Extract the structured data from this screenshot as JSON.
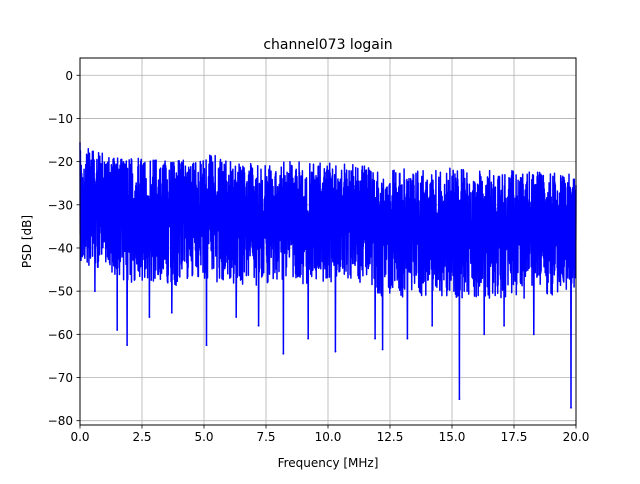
{
  "chart_data": {
    "type": "line",
    "title": "channel073 logain",
    "xlabel": "Frequency [MHz]",
    "ylabel": "PSD [dB]",
    "xlim": [
      0,
      20
    ],
    "ylim": [
      -81,
      4
    ],
    "x_ticks": [
      0.0,
      2.5,
      5.0,
      7.5,
      10.0,
      12.5,
      15.0,
      17.5,
      20.0
    ],
    "x_tick_labels": [
      "0.0",
      "2.5",
      "5.0",
      "7.5",
      "10.0",
      "12.5",
      "15.0",
      "17.5",
      "20.0"
    ],
    "y_ticks": [
      0,
      -10,
      -20,
      -30,
      -40,
      -50,
      -60,
      -70,
      -80
    ],
    "y_tick_labels": [
      "0",
      "−10",
      "−20",
      "−30",
      "−40",
      "−50",
      "−60",
      "−70",
      "−80"
    ],
    "grid": true,
    "series": [
      {
        "color": "#0000ff",
        "upper_envelope": {
          "x": [
            0.0,
            0.3,
            0.6,
            1.0,
            1.5,
            2.0,
            2.5,
            3.0,
            4.0,
            5.0,
            5.2,
            6.0,
            7.0,
            8.0,
            9.0,
            10.0,
            11.0,
            11.5,
            12.0,
            12.5,
            13.0,
            14.0,
            15.0,
            16.0,
            17.0,
            18.0,
            19.0,
            19.5,
            20.0
          ],
          "y": [
            -14,
            -15,
            -16,
            -16.5,
            -17,
            -17.5,
            -17.8,
            -18,
            -18,
            -18,
            -16,
            -18.2,
            -18.5,
            -18.5,
            -18.5,
            -18.8,
            -19,
            -19.5,
            -20,
            -20.5,
            -20.2,
            -20,
            -20,
            -20.3,
            -20.5,
            -20.7,
            -21,
            -21.3,
            -21.5
          ]
        },
        "lower_envelope": {
          "x": [
            0.0,
            1.0,
            2.0,
            3.0,
            4.0,
            5.0,
            6.0,
            7.0,
            8.0,
            9.0,
            10.0,
            11.0,
            12.0,
            13.0,
            14.0,
            15.0,
            16.0,
            17.0,
            18.0,
            19.0,
            20.0
          ],
          "y": [
            -44,
            -47,
            -49,
            -49,
            -50,
            -48,
            -50,
            -50,
            -49,
            -50,
            -49,
            -49,
            -52,
            -53,
            -52,
            -53,
            -53,
            -53,
            -53,
            -52,
            -50
          ]
        },
        "dips": [
          {
            "x": 0.6,
            "y": -50
          },
          {
            "x": 1.5,
            "y": -59
          },
          {
            "x": 1.9,
            "y": -62.5
          },
          {
            "x": 2.8,
            "y": -56
          },
          {
            "x": 3.7,
            "y": -55
          },
          {
            "x": 5.1,
            "y": -62.5
          },
          {
            "x": 6.3,
            "y": -56
          },
          {
            "x": 7.2,
            "y": -58
          },
          {
            "x": 8.2,
            "y": -64.5
          },
          {
            "x": 9.2,
            "y": -61
          },
          {
            "x": 10.3,
            "y": -64
          },
          {
            "x": 11.9,
            "y": -61
          },
          {
            "x": 12.2,
            "y": -63.5
          },
          {
            "x": 13.2,
            "y": -61
          },
          {
            "x": 14.2,
            "y": -58
          },
          {
            "x": 15.3,
            "y": -75
          },
          {
            "x": 16.3,
            "y": -60
          },
          {
            "x": 17.1,
            "y": -58
          },
          {
            "x": 18.3,
            "y": -60
          },
          {
            "x": 19.8,
            "y": -77
          }
        ]
      }
    ]
  }
}
